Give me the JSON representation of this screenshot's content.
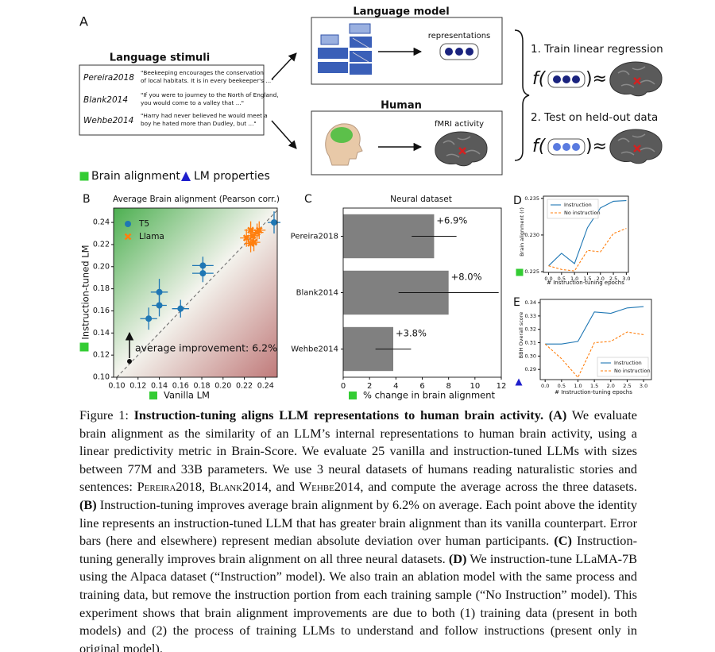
{
  "figure_a": {
    "label": "A",
    "stimuli_title": "Language stimuli",
    "stimuli": [
      {
        "dataset": "Pereira2018",
        "text": [
          "\"Beekeeping encourages the conservation",
          "of local habitats. It is in every beekeeper's ...\""
        ]
      },
      {
        "dataset": "Blank2014",
        "text": [
          "\"If you were to journey to the North of England,",
          "you would come to a valley that ...\""
        ]
      },
      {
        "dataset": "Wehbe2014",
        "text": [
          "\"Harry had never believed he would meet a",
          "boy he hated more than Dudley, but ...\""
        ]
      }
    ],
    "model_title": "Language model",
    "representations": "representations",
    "human_title": "Human",
    "fmri": "fMRI activity",
    "step1": "1. Train linear regression",
    "step2": "2. Test on held-out data",
    "formula_open": "f(",
    "formula_close": ")≈"
  },
  "legend": [
    {
      "label": "Brain alignment",
      "color": "#33cc33",
      "marker": "square"
    },
    {
      "label": "LM properties",
      "color": "#1f1fcc",
      "marker": "triangle"
    }
  ],
  "chart_data": [
    {
      "type": "scatter",
      "panel": "B",
      "title": "Average Brain alignment (Pearson corr.)",
      "xlabel": "Vanilla LM",
      "ylabel": "Instruction-tuned LM",
      "annotation": "average improvement: 6.2%",
      "xlim": [
        0.097,
        0.251
      ],
      "ylim": [
        0.1,
        0.253
      ],
      "xticks": [
        {
          "value": 0.1,
          "label": "0.10"
        },
        0.12,
        0.14,
        0.16,
        0.18,
        {
          "value": 0.2,
          "label": "0.20"
        },
        0.22,
        0.24
      ],
      "yticks": [
        {
          "value": 0.1,
          "label": "0.10"
        },
        0.12,
        0.14,
        0.16,
        0.18,
        {
          "value": 0.2,
          "label": "0.20"
        },
        0.22,
        0.24
      ],
      "series": [
        {
          "name": "T5",
          "color": "#1f77b4",
          "marker": "circle",
          "x": [
            0.13,
            0.14,
            0.14,
            0.16,
            0.181,
            0.181,
            0.248
          ],
          "y": [
            0.153,
            0.165,
            0.177,
            0.162,
            0.201,
            0.194,
            0.24
          ],
          "xerr": [
            0.008,
            0.007,
            0.008,
            0.008,
            0.01,
            0.01,
            0.006
          ],
          "yerr": [
            0.01,
            0.01,
            0.012,
            0.008,
            0.008,
            0.008,
            0.01
          ]
        },
        {
          "name": "Llama",
          "color": "#ff7f0e",
          "marker": "x",
          "x": [
            0.222,
            0.226,
            0.228,
            0.229,
            0.232,
            0.234,
            0.226
          ],
          "y": [
            0.226,
            0.233,
            0.228,
            0.222,
            0.231,
            0.233,
            0.221
          ],
          "xerr": [
            0.006,
            0.006,
            0.006,
            0.006,
            0.006,
            0.006,
            0.006
          ],
          "yerr": [
            0.008,
            0.008,
            0.008,
            0.008,
            0.008,
            0.008,
            0.008
          ]
        }
      ]
    },
    {
      "type": "bar",
      "orientation": "horizontal",
      "panel": "C",
      "title": "Neural dataset",
      "xlabel": "% change in brain alignment",
      "categories": [
        "Pereira2018",
        "Blank2014",
        "Wehbe2014"
      ],
      "values": [
        6.9,
        8.0,
        3.8
      ],
      "value_labels": [
        "+6.9%",
        "+8.0%",
        "+3.8%"
      ],
      "errors": [
        1.7,
        3.8,
        1.35
      ],
      "color": "#808080",
      "xlim": [
        0,
        12
      ],
      "xticks": [
        0,
        2,
        4,
        6,
        8,
        10,
        12
      ]
    },
    {
      "type": "line",
      "panel": "D",
      "xlabel": "# Instruction-tuning epochs",
      "ylabel": "Brain alignment (r)",
      "legend_loc": "upper left",
      "x": [
        0,
        0.5,
        1,
        1.5,
        2,
        2.5,
        3
      ],
      "xlim": [
        -0.2,
        3.08
      ],
      "ylim": [
        0.2249,
        0.2353
      ],
      "xticks": [
        {
          "value": 0,
          "label": "0.0"
        },
        0.5,
        {
          "value": 1,
          "label": "1.0"
        },
        1.5,
        {
          "value": 2,
          "label": "2.0"
        },
        2.5,
        {
          "value": 3,
          "label": "3.0"
        }
      ],
      "yticks": [
        0.225,
        {
          "value": 0.23,
          "label": "0.230"
        },
        0.235
      ],
      "series": [
        {
          "name": "Instruction",
          "color": "#1f77b4",
          "linestyle": "solid",
          "values": [
            0.2258,
            0.2275,
            0.2261,
            0.231,
            0.2337,
            0.2346,
            0.2347
          ]
        },
        {
          "name": "No instruction",
          "color": "#ff7f0e",
          "linestyle": "dashed",
          "values": [
            0.2258,
            0.2253,
            0.2251,
            0.2279,
            0.2277,
            0.2302,
            0.2309
          ]
        }
      ]
    },
    {
      "type": "line",
      "panel": "E",
      "xlabel": "# Instruction-tuning epochs",
      "ylabel": "BBH Overall score",
      "legend_loc": "lower right",
      "x": [
        0,
        0.5,
        1,
        1.5,
        2,
        2.5,
        3
      ],
      "xlim": [
        -0.15,
        3.24
      ],
      "ylim": [
        0.2824,
        0.3424
      ],
      "xticks": [
        {
          "value": 0,
          "label": "0.0"
        },
        0.5,
        {
          "value": 1,
          "label": "1.0"
        },
        1.5,
        {
          "value": 2,
          "label": "2.0"
        },
        2.5,
        {
          "value": 3,
          "label": "3.0"
        }
      ],
      "yticks": [
        0.29,
        {
          "value": 0.3,
          "label": "0.30"
        },
        0.31,
        0.32,
        0.33,
        0.34
      ],
      "series": [
        {
          "name": "Instruction",
          "color": "#1f77b4",
          "linestyle": "solid",
          "values": [
            0.309,
            0.309,
            0.311,
            0.333,
            0.332,
            0.336,
            0.337
          ]
        },
        {
          "name": "No instruction",
          "color": "#ff7f0e",
          "linestyle": "dashed",
          "values": [
            0.309,
            0.298,
            0.284,
            0.31,
            0.311,
            0.318,
            0.316
          ]
        }
      ]
    }
  ],
  "caption": [
    {
      "text": "Figure 1: ",
      "style": "normal"
    },
    {
      "text": "Instruction-tuning aligns LLM representations to human brain activity.",
      "style": "bold"
    },
    {
      "text": " ",
      "style": "normal"
    },
    {
      "text": "(A)",
      "style": "bold"
    },
    {
      "text": " We evaluate brain alignment as the similarity of an LLM’s internal representations to human brain activity, using a linear predictivity metric in Brain-Score. We evaluate 25 vanilla and instruction-tuned LLMs with sizes between 77M and 33B parameters. We use 3 neural datasets of humans reading naturalistic stories and sentences: ",
      "style": "normal"
    },
    {
      "text": "Pereira2018",
      "style": "smallcaps"
    },
    {
      "text": ", ",
      "style": "normal"
    },
    {
      "text": "Blank2014",
      "style": "smallcaps"
    },
    {
      "text": ", and ",
      "style": "normal"
    },
    {
      "text": "Wehbe2014",
      "style": "smallcaps"
    },
    {
      "text": ", and compute the average across the three datasets. ",
      "style": "normal"
    },
    {
      "text": "(B)",
      "style": "bold"
    },
    {
      "text": " Instruction-tuning improves average brain alignment by 6.2% on average. Each point above the identity line represents an instruction-tuned LLM that has greater brain alignment than its vanilla counterpart. Error bars (here and elsewhere) represent median absolute deviation over human participants. ",
      "style": "normal"
    },
    {
      "text": "(C)",
      "style": "bold"
    },
    {
      "text": " Instruction-tuning generally improves brain alignment on all three neural datasets. ",
      "style": "normal"
    },
    {
      "text": "(D)",
      "style": "bold"
    },
    {
      "text": " We instruction-tune LLaMA-7B using the Alpaca dataset (“Instruction” model). We also train an ablation model with the same process and training data, but remove the instruction portion from each training sample (“No Instruction” model). This experiment shows that brain alignment improvements are due to both (1) training data (present in both models) and (2) the process of training LLMs to understand and follow instructions (present only in original model).",
      "style": "normal"
    }
  ]
}
